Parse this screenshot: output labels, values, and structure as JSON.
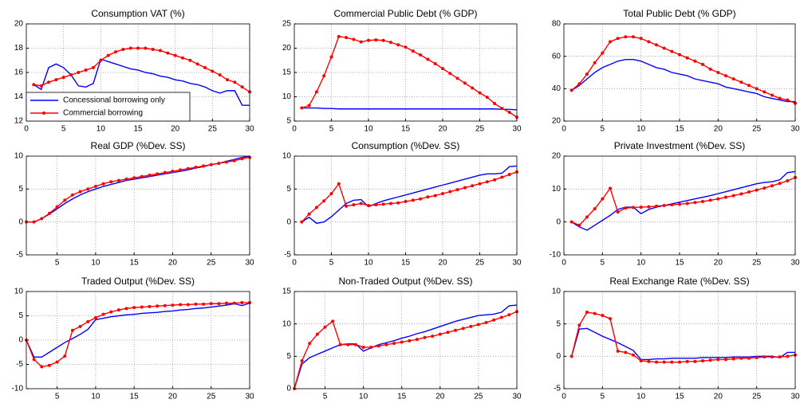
{
  "chart_data": [
    {
      "type": "line",
      "title": "Consumption VAT (%)",
      "x": [
        1,
        2,
        3,
        4,
        5,
        6,
        7,
        8,
        9,
        10,
        11,
        12,
        13,
        14,
        15,
        16,
        17,
        18,
        19,
        20,
        21,
        22,
        23,
        24,
        25,
        26,
        27,
        28,
        29,
        30
      ],
      "xlim": [
        0,
        30
      ],
      "xticks": [
        0,
        5,
        10,
        15,
        20,
        25,
        30
      ],
      "ylim": [
        12,
        20
      ],
      "yticks": [
        12,
        14,
        16,
        18,
        20
      ],
      "grid": true,
      "legend": "lower left",
      "series": [
        {
          "name": "Concessional borrowing only",
          "color": "#0000ff",
          "values": [
            15.0,
            14.6,
            16.4,
            16.7,
            16.4,
            15.8,
            14.9,
            14.8,
            15.1,
            17.1,
            16.9,
            16.7,
            16.5,
            16.3,
            16.2,
            16.0,
            15.9,
            15.7,
            15.6,
            15.4,
            15.3,
            15.1,
            15.0,
            14.8,
            14.5,
            14.3,
            14.5,
            14.5,
            13.3,
            13.3
          ]
        },
        {
          "name": "Commercial borrowing",
          "color": "#ff0000",
          "marker": "o",
          "values": [
            15.0,
            14.9,
            15.2,
            15.4,
            15.6,
            15.8,
            16.0,
            16.2,
            16.4,
            17.0,
            17.4,
            17.7,
            17.9,
            18.0,
            18.0,
            18.0,
            17.9,
            17.8,
            17.6,
            17.4,
            17.2,
            17.0,
            16.7,
            16.4,
            16.1,
            15.8,
            15.4,
            15.2,
            14.8,
            14.4
          ]
        }
      ]
    },
    {
      "type": "line",
      "title": "Commercial Public Debt (% GDP)",
      "x": [
        1,
        2,
        3,
        4,
        5,
        6,
        7,
        8,
        9,
        10,
        11,
        12,
        13,
        14,
        15,
        16,
        17,
        18,
        19,
        20,
        21,
        22,
        23,
        24,
        25,
        26,
        27,
        28,
        29,
        30
      ],
      "xlim": [
        0,
        30
      ],
      "xticks": [
        0,
        5,
        10,
        15,
        20,
        25,
        30
      ],
      "ylim": [
        5,
        25
      ],
      "yticks": [
        5,
        10,
        15,
        20,
        25
      ],
      "grid": true,
      "series": [
        {
          "color": "#0000ff",
          "values": [
            7.7,
            7.7,
            7.7,
            7.6,
            7.6,
            7.5,
            7.5,
            7.5,
            7.5,
            7.5,
            7.5,
            7.5,
            7.5,
            7.5,
            7.5,
            7.5,
            7.5,
            7.5,
            7.5,
            7.5,
            7.5,
            7.5,
            7.5,
            7.5,
            7.5,
            7.5,
            7.5,
            7.4,
            7.4,
            7.3
          ]
        },
        {
          "color": "#ff0000",
          "marker": "o",
          "values": [
            7.7,
            8.2,
            11.0,
            14.3,
            18.2,
            22.4,
            22.2,
            21.8,
            21.3,
            21.6,
            21.7,
            21.6,
            21.2,
            20.7,
            20.2,
            19.4,
            18.6,
            17.7,
            16.8,
            15.8,
            14.8,
            13.8,
            12.8,
            11.8,
            10.8,
            9.9,
            8.6,
            7.6,
            6.8,
            5.8
          ]
        }
      ]
    },
    {
      "type": "line",
      "title": "Total Public Debt (% GDP)",
      "x": [
        1,
        2,
        3,
        4,
        5,
        6,
        7,
        8,
        9,
        10,
        11,
        12,
        13,
        14,
        15,
        16,
        17,
        18,
        19,
        20,
        21,
        22,
        23,
        24,
        25,
        26,
        27,
        28,
        29,
        30
      ],
      "xlim": [
        0,
        30
      ],
      "xticks": [
        0,
        5,
        10,
        15,
        20,
        25,
        30
      ],
      "ylim": [
        20,
        80
      ],
      "yticks": [
        20,
        40,
        60,
        80
      ],
      "grid": true,
      "series": [
        {
          "color": "#0000ff",
          "values": [
            39,
            42,
            46,
            50,
            53,
            55,
            57,
            58,
            58,
            57,
            55,
            53,
            52,
            50,
            49,
            48,
            46,
            45,
            44,
            43,
            41,
            40,
            39,
            38,
            37,
            35,
            34,
            33,
            32,
            32
          ]
        },
        {
          "color": "#ff0000",
          "marker": "o",
          "values": [
            39,
            43,
            49,
            56,
            62,
            69,
            71,
            72,
            72,
            71,
            69,
            67,
            65,
            63,
            61,
            59,
            57,
            55,
            52,
            50,
            48,
            46,
            44,
            42,
            40,
            38,
            36,
            34,
            33,
            31
          ]
        }
      ]
    },
    {
      "type": "line",
      "title": "Real GDP (%Dev. SS)",
      "x": [
        1,
        2,
        3,
        4,
        5,
        6,
        7,
        8,
        9,
        10,
        11,
        12,
        13,
        14,
        15,
        16,
        17,
        18,
        19,
        20,
        21,
        22,
        23,
        24,
        25,
        26,
        27,
        28,
        29,
        30
      ],
      "xlim": [
        1,
        30
      ],
      "xticks": [
        5,
        10,
        15,
        20,
        25,
        30
      ],
      "ylim": [
        -5,
        10
      ],
      "yticks": [
        -5,
        0,
        5,
        10
      ],
      "grid": true,
      "series": [
        {
          "color": "#0000ff",
          "values": [
            0,
            0,
            0.5,
            1.2,
            2.0,
            2.8,
            3.5,
            4.1,
            4.6,
            5.0,
            5.4,
            5.7,
            6.0,
            6.3,
            6.5,
            6.7,
            6.9,
            7.1,
            7.3,
            7.5,
            7.7,
            7.9,
            8.2,
            8.4,
            8.7,
            8.9,
            9.2,
            9.5,
            9.8,
            10.0
          ]
        },
        {
          "color": "#ff0000",
          "marker": "o",
          "values": [
            0,
            0,
            0.5,
            1.3,
            2.3,
            3.3,
            4.1,
            4.6,
            5.0,
            5.4,
            5.8,
            6.1,
            6.3,
            6.5,
            6.7,
            6.9,
            7.1,
            7.3,
            7.5,
            7.7,
            7.9,
            8.1,
            8.3,
            8.5,
            8.7,
            8.9,
            9.1,
            9.3,
            9.6,
            9.8
          ]
        }
      ]
    },
    {
      "type": "line",
      "title": "Consumption (%Dev. SS)",
      "x": [
        1,
        2,
        3,
        4,
        5,
        6,
        7,
        8,
        9,
        10,
        11,
        12,
        13,
        14,
        15,
        16,
        17,
        18,
        19,
        20,
        21,
        22,
        23,
        24,
        25,
        26,
        27,
        28,
        29,
        30
      ],
      "xlim": [
        0,
        30
      ],
      "xticks": [
        0,
        5,
        10,
        15,
        20,
        25,
        30
      ],
      "ylim": [
        -5,
        10
      ],
      "yticks": [
        -5,
        0,
        5,
        10
      ],
      "grid": true,
      "series": [
        {
          "color": "#0000ff",
          "values": [
            0,
            0.7,
            -0.2,
            0,
            0.8,
            1.8,
            2.8,
            3.3,
            3.4,
            2.3,
            2.8,
            3.2,
            3.5,
            3.8,
            4.1,
            4.4,
            4.7,
            5.0,
            5.3,
            5.6,
            5.9,
            6.2,
            6.5,
            6.8,
            7.1,
            7.3,
            7.3,
            7.4,
            8.4,
            8.5
          ]
        },
        {
          "color": "#ff0000",
          "marker": "o",
          "values": [
            0,
            1.2,
            2.2,
            3.2,
            4.3,
            5.8,
            2.4,
            2.6,
            2.8,
            2.5,
            2.6,
            2.7,
            2.8,
            2.9,
            3.1,
            3.3,
            3.5,
            3.8,
            4.0,
            4.3,
            4.6,
            4.9,
            5.2,
            5.5,
            5.8,
            6.1,
            6.4,
            6.8,
            7.2,
            7.6
          ]
        }
      ]
    },
    {
      "type": "line",
      "title": "Private Investment (%Dev. SS)",
      "x": [
        1,
        2,
        3,
        4,
        5,
        6,
        7,
        8,
        9,
        10,
        11,
        12,
        13,
        14,
        15,
        16,
        17,
        18,
        19,
        20,
        21,
        22,
        23,
        24,
        25,
        26,
        27,
        28,
        29,
        30
      ],
      "xlim": [
        0,
        30
      ],
      "xticks": [
        0,
        5,
        10,
        15,
        20,
        25,
        30
      ],
      "ylim": [
        -10,
        20
      ],
      "yticks": [
        -10,
        0,
        10,
        20
      ],
      "grid": true,
      "series": [
        {
          "color": "#0000ff",
          "values": [
            0,
            -1.5,
            -2.5,
            -1,
            0.5,
            2,
            3.8,
            4.5,
            4.5,
            2.5,
            3.8,
            4.5,
            5,
            5.5,
            6,
            6.5,
            7,
            7.5,
            8,
            8.6,
            9.2,
            9.8,
            10.4,
            11,
            11.6,
            12,
            12.2,
            12.8,
            15,
            15.3
          ]
        },
        {
          "color": "#ff0000",
          "marker": "o",
          "values": [
            0,
            -1,
            1.5,
            4,
            7,
            10.2,
            3,
            4.2,
            4.4,
            4.5,
            4.6,
            4.8,
            5,
            5.2,
            5.4,
            5.6,
            5.9,
            6.2,
            6.6,
            7,
            7.5,
            8,
            8.5,
            9.1,
            9.7,
            10.3,
            11,
            11.7,
            12.5,
            13.5
          ]
        }
      ]
    },
    {
      "type": "line",
      "title": "Traded Output (%Dev. SS)",
      "x": [
        1,
        2,
        3,
        4,
        5,
        6,
        7,
        8,
        9,
        10,
        11,
        12,
        13,
        14,
        15,
        16,
        17,
        18,
        19,
        20,
        21,
        22,
        23,
        24,
        25,
        26,
        27,
        28,
        29,
        30
      ],
      "xlim": [
        1,
        30
      ],
      "xticks": [
        5,
        10,
        15,
        20,
        25,
        30
      ],
      "ylim": [
        -10,
        10
      ],
      "yticks": [
        -10,
        -5,
        0,
        5,
        10
      ],
      "grid": true,
      "series": [
        {
          "color": "#0000ff",
          "values": [
            0,
            -3.5,
            -3.5,
            -2.5,
            -1.5,
            -0.5,
            0.3,
            1.2,
            2.2,
            4.2,
            4.5,
            4.8,
            5.0,
            5.2,
            5.3,
            5.5,
            5.6,
            5.7,
            5.9,
            6.0,
            6.2,
            6.3,
            6.5,
            6.6,
            6.8,
            7.0,
            7.2,
            7.5,
            7.1,
            7.6
          ]
        },
        {
          "color": "#ff0000",
          "marker": "o",
          "values": [
            0,
            -4,
            -5.5,
            -5.2,
            -4.5,
            -3.3,
            2.0,
            2.8,
            3.8,
            4.6,
            5.3,
            5.8,
            6.2,
            6.5,
            6.7,
            6.8,
            6.9,
            7.0,
            7.1,
            7.2,
            7.3,
            7.3,
            7.4,
            7.4,
            7.5,
            7.5,
            7.6,
            7.6,
            7.7,
            7.7
          ]
        }
      ]
    },
    {
      "type": "line",
      "title": "Non-Traded Output (%Dev. SS)",
      "x": [
        1,
        2,
        3,
        4,
        5,
        6,
        7,
        8,
        9,
        10,
        11,
        12,
        13,
        14,
        15,
        16,
        17,
        18,
        19,
        20,
        21,
        22,
        23,
        24,
        25,
        26,
        27,
        28,
        29,
        30
      ],
      "xlim": [
        1,
        30
      ],
      "xticks": [
        5,
        10,
        15,
        20,
        25,
        30
      ],
      "ylim": [
        0,
        15
      ],
      "yticks": [
        0,
        5,
        10,
        15
      ],
      "grid": true,
      "series": [
        {
          "color": "#0000ff",
          "values": [
            0,
            3.8,
            4.8,
            5.3,
            5.8,
            6.3,
            6.8,
            6.9,
            6.9,
            5.8,
            6.3,
            6.8,
            7.1,
            7.4,
            7.8,
            8.1,
            8.5,
            8.8,
            9.2,
            9.6,
            10,
            10.4,
            10.7,
            11.0,
            11.3,
            11.4,
            11.5,
            11.8,
            12.8,
            12.9
          ]
        },
        {
          "color": "#ff0000",
          "marker": "o",
          "values": [
            0,
            4.3,
            7.0,
            8.4,
            9.5,
            10.4,
            6.8,
            6.8,
            6.8,
            6.4,
            6.4,
            6.6,
            6.8,
            7.0,
            7.2,
            7.4,
            7.6,
            7.9,
            8.1,
            8.4,
            8.7,
            9.0,
            9.3,
            9.6,
            9.9,
            10.2,
            10.6,
            11.0,
            11.4,
            11.9
          ]
        }
      ]
    },
    {
      "type": "line",
      "title": "Real Exchange Rate (%Dev. SS)",
      "x": [
        1,
        2,
        3,
        4,
        5,
        6,
        7,
        8,
        9,
        10,
        11,
        12,
        13,
        14,
        15,
        16,
        17,
        18,
        19,
        20,
        21,
        22,
        23,
        24,
        25,
        26,
        27,
        28,
        29,
        30
      ],
      "xlim": [
        0,
        30
      ],
      "xticks": [
        0,
        5,
        10,
        15,
        20,
        25,
        30
      ],
      "ylim": [
        -5,
        10
      ],
      "yticks": [
        -5,
        0,
        5,
        10
      ],
      "grid": true,
      "series": [
        {
          "color": "#0000ff",
          "values": [
            0,
            4.2,
            4.3,
            3.7,
            3.1,
            2.6,
            2.1,
            1.5,
            0.9,
            -0.5,
            -0.5,
            -0.4,
            -0.4,
            -0.3,
            -0.3,
            -0.3,
            -0.3,
            -0.2,
            -0.2,
            -0.2,
            -0.2,
            -0.1,
            -0.1,
            -0.1,
            0,
            0,
            0,
            -0.2,
            0.6,
            0.6
          ]
        },
        {
          "color": "#ff0000",
          "marker": "o",
          "values": [
            0,
            4.8,
            6.8,
            6.6,
            6.3,
            5.8,
            0.8,
            0.6,
            0.2,
            -0.7,
            -0.8,
            -0.9,
            -0.9,
            -0.9,
            -0.9,
            -0.8,
            -0.8,
            -0.7,
            -0.6,
            -0.5,
            -0.5,
            -0.4,
            -0.3,
            -0.3,
            -0.2,
            -0.1,
            -0.1,
            -0.1,
            0,
            0.2
          ]
        }
      ]
    }
  ]
}
